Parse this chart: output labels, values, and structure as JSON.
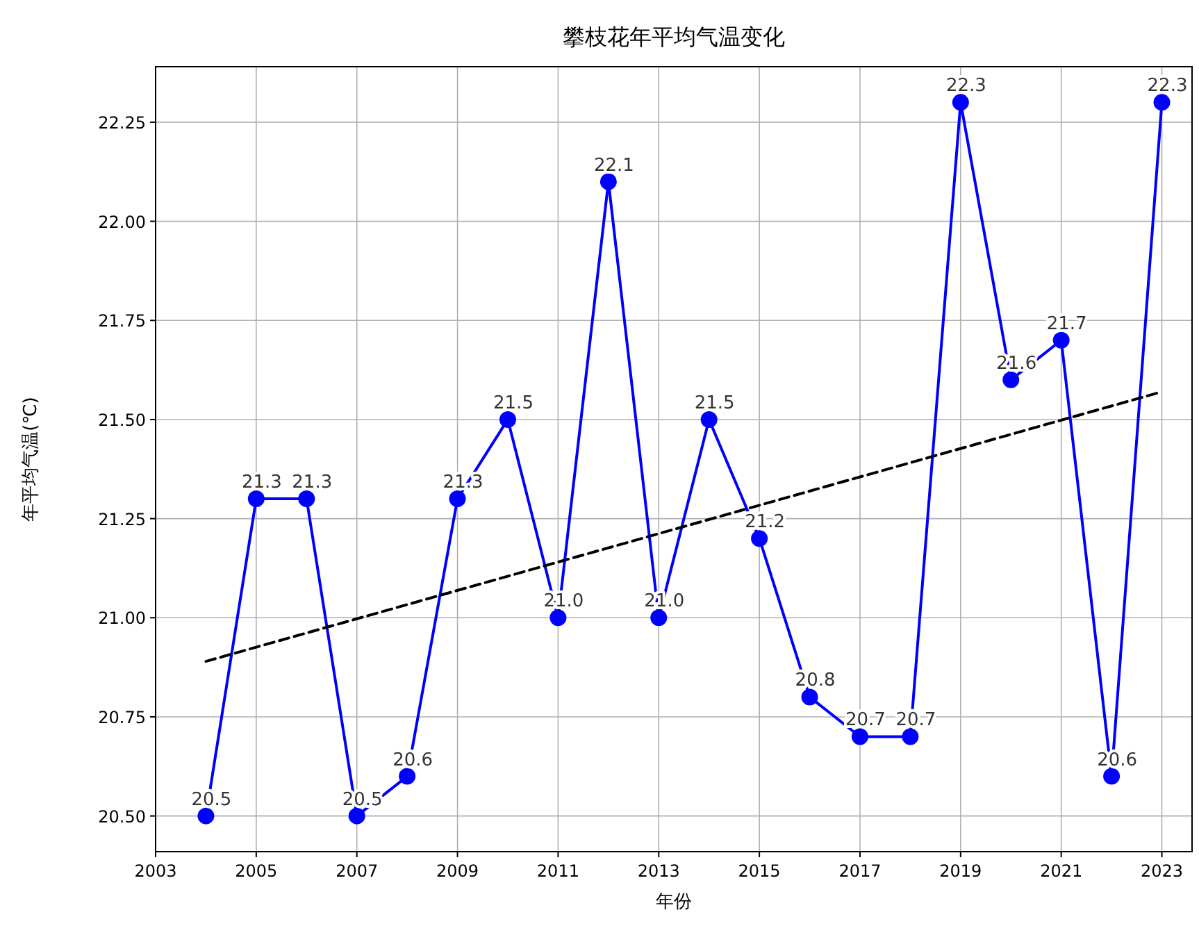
{
  "chart_data": {
    "type": "line",
    "title": "攀枝花年平均气温变化",
    "xlabel": "年份",
    "ylabel": "年平均气温(℃)",
    "xlim": [
      2003,
      2023.6
    ],
    "ylim": [
      20.41,
      22.39
    ],
    "xticks": [
      2003,
      2005,
      2007,
      2009,
      2011,
      2013,
      2015,
      2017,
      2019,
      2021,
      2023
    ],
    "yticks": [
      {
        "value": 20.5,
        "label": "20.50"
      },
      {
        "value": 20.75,
        "label": "20.75"
      },
      {
        "value": 21.0,
        "label": "21.00"
      },
      {
        "value": 21.25,
        "label": "21.25"
      },
      {
        "value": 21.5,
        "label": "21.50"
      },
      {
        "value": 21.75,
        "label": "21.75"
      },
      {
        "value": 22.0,
        "label": "22.00"
      },
      {
        "value": 22.25,
        "label": "22.25"
      }
    ],
    "grid": true,
    "series": [
      {
        "type": "line",
        "color": "#0000ff",
        "marker": "circle",
        "line_style": "solid",
        "x": [
          2004,
          2005,
          2006,
          2007,
          2008,
          2009,
          2010,
          2011,
          2012,
          2013,
          2014,
          2015,
          2016,
          2017,
          2018,
          2019,
          2020,
          2021,
          2022,
          2023
        ],
        "values": [
          20.5,
          21.3,
          21.3,
          20.5,
          20.6,
          21.3,
          21.5,
          21.0,
          22.1,
          21.0,
          21.5,
          21.2,
          20.8,
          20.7,
          20.7,
          22.3,
          21.6,
          21.7,
          20.6,
          22.3
        ],
        "value_labels": [
          "20.5",
          "21.3",
          "21.3",
          "20.5",
          "20.6",
          "21.3",
          "21.5",
          "21.0",
          "22.1",
          "21.0",
          "21.5",
          "21.2",
          "20.8",
          "20.7",
          "20.7",
          "22.3",
          "21.6",
          "21.7",
          "20.6",
          "22.3"
        ]
      },
      {
        "type": "line",
        "color": "#000000",
        "marker": "none",
        "line_style": "dashed",
        "x": [
          2004,
          2023
        ],
        "values": [
          20.89,
          21.57
        ]
      }
    ]
  }
}
